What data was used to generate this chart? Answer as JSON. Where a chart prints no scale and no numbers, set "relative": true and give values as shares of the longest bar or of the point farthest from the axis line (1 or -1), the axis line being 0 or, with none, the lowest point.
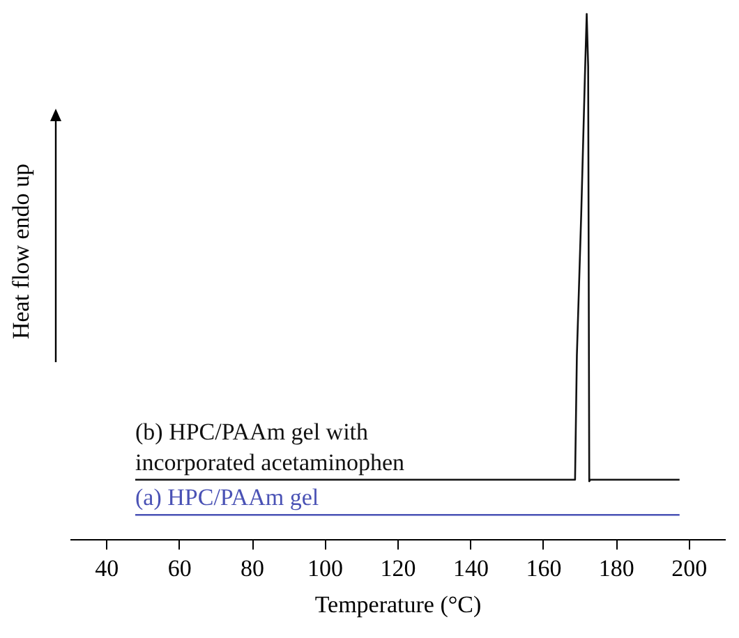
{
  "chart_data": {
    "type": "line",
    "xlabel": "Temperature (°C)",
    "ylabel": "Heat flow endo up",
    "relative": true,
    "xlim": [
      30,
      210
    ],
    "xticks": [
      40,
      60,
      80,
      100,
      120,
      140,
      160,
      180,
      200
    ],
    "grid": false,
    "marker": "none",
    "line_style": "solid",
    "series": [
      {
        "name": "(b) HPC/PAAm gel with incorporated acetaminophen",
        "color": "#111111",
        "x": [
          48,
          168.8,
          169.3,
          170.5,
          171.5,
          172,
          172.4,
          172.7,
          173,
          197.5
        ],
        "values": [
          0.113,
          0.113,
          0.35,
          0.62,
          0.88,
          1,
          0.9,
          0.11,
          0.113,
          0.113
        ]
      },
      {
        "name": "(a) HPC/PAAm gel",
        "color": "#4a52b5",
        "x": [
          48,
          197.5
        ],
        "values": [
          0.046,
          0.046
        ]
      }
    ]
  }
}
